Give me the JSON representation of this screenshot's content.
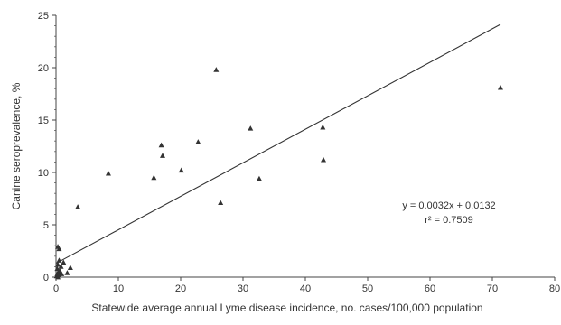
{
  "chart_data": {
    "type": "scatter",
    "title": "",
    "xlabel": "Statewide average annual Lyme disease incidence, no. cases/100,000 population",
    "ylabel": "Canine seroprevalence, %",
    "xlim": [
      0,
      80
    ],
    "ylim": [
      0,
      25
    ],
    "x_ticks": [
      0,
      10,
      20,
      30,
      40,
      50,
      60,
      70,
      80
    ],
    "y_ticks": [
      0,
      5,
      10,
      15,
      20,
      25
    ],
    "grid": false,
    "legend": "none",
    "marker": "triangle",
    "marker_color": "#333333",
    "points": [
      {
        "x": 0.1,
        "y": 0.1
      },
      {
        "x": 0.2,
        "y": 0.3
      },
      {
        "x": 0.3,
        "y": 0.0
      },
      {
        "x": 0.4,
        "y": 0.5
      },
      {
        "x": 0.2,
        "y": 0.8
      },
      {
        "x": 0.5,
        "y": 0.2
      },
      {
        "x": 0.6,
        "y": 0.6
      },
      {
        "x": 0.3,
        "y": 1.2
      },
      {
        "x": 0.8,
        "y": 1.0
      },
      {
        "x": 0.5,
        "y": 1.6
      },
      {
        "x": 0.9,
        "y": 0.3
      },
      {
        "x": 1.2,
        "y": 1.4
      },
      {
        "x": 0.3,
        "y": 2.9
      },
      {
        "x": 0.5,
        "y": 2.7
      },
      {
        "x": 1.8,
        "y": 0.4
      },
      {
        "x": 2.3,
        "y": 0.9
      },
      {
        "x": 3.5,
        "y": 6.7
      },
      {
        "x": 8.4,
        "y": 9.9
      },
      {
        "x": 15.7,
        "y": 9.5
      },
      {
        "x": 16.9,
        "y": 12.6
      },
      {
        "x": 17.1,
        "y": 11.6
      },
      {
        "x": 20.1,
        "y": 10.2
      },
      {
        "x": 22.8,
        "y": 12.9
      },
      {
        "x": 25.7,
        "y": 19.8
      },
      {
        "x": 26.4,
        "y": 7.1
      },
      {
        "x": 31.2,
        "y": 14.2
      },
      {
        "x": 32.6,
        "y": 9.4
      },
      {
        "x": 42.8,
        "y": 14.3
      },
      {
        "x": 42.9,
        "y": 11.2
      },
      {
        "x": 71.3,
        "y": 18.1
      }
    ],
    "trendline": {
      "slope": 0.32,
      "intercept": 1.32,
      "x_start": 0,
      "x_end": 71.3,
      "equation": "y = 0.0032x + 0.0132",
      "r_squared": "r² = 0.7509"
    }
  }
}
